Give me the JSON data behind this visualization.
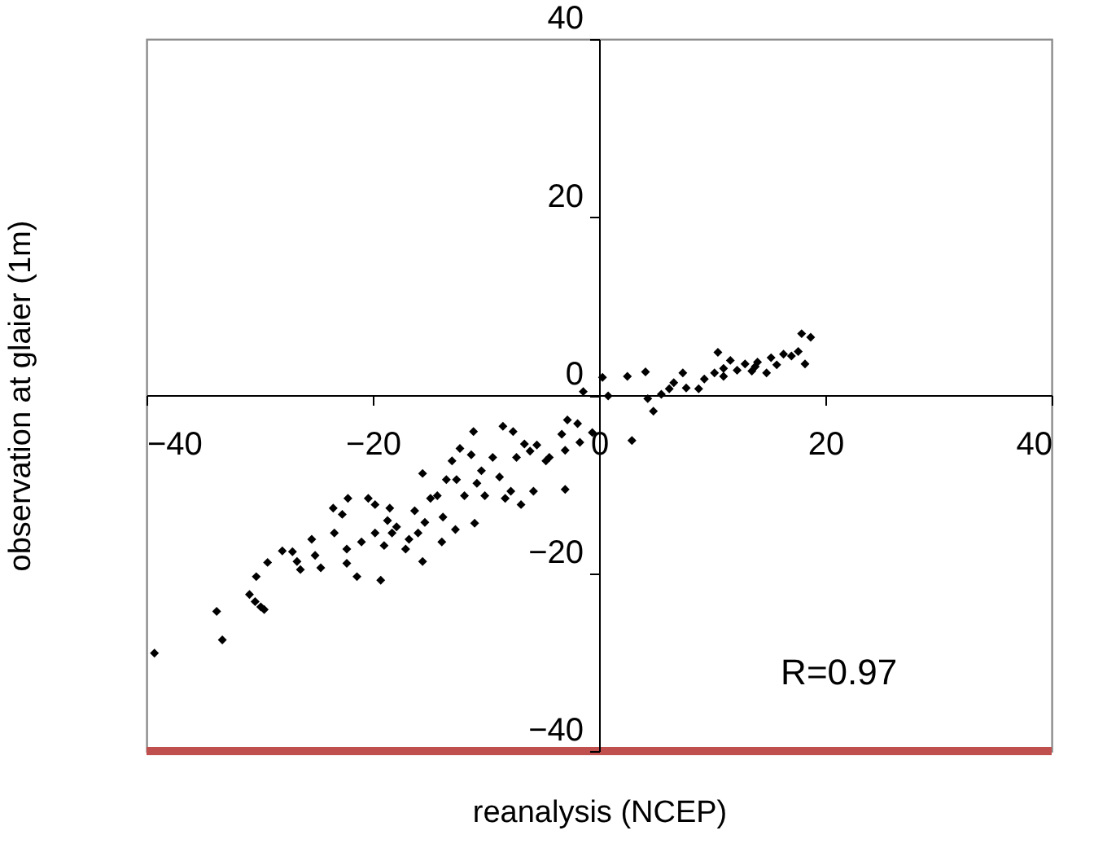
{
  "chart_data": {
    "type": "scatter",
    "xlabel": "reanalysis (NCEP)",
    "ylabel": "observation at glaier (1m)",
    "xlim": [
      -40,
      40
    ],
    "ylim": [
      -40,
      40
    ],
    "xticks": [
      -40,
      -20,
      0,
      20,
      40
    ],
    "yticks": [
      -40,
      -20,
      0,
      20,
      40
    ],
    "grid": false,
    "marker": "diamond",
    "legend": false,
    "annotations": [
      "R=0.97"
    ],
    "ref_lines": [
      {
        "axis": "y",
        "value": -40,
        "label": null,
        "color": "#c0504d"
      }
    ],
    "series": [
      {
        "color": "#000000",
        "x": [
          -39.3,
          -33.8,
          -33.3,
          -30.9,
          -30.4,
          -29.9,
          -29.6,
          -30.3,
          -29.3,
          -28.0,
          -27.1,
          -26.7,
          -26.4,
          -25.4,
          -25.1,
          -24.6,
          -23.5,
          -23.4,
          -22.7,
          -22.2,
          -22.3,
          -22.3,
          -21.4,
          -21.0,
          -20.4,
          -19.8,
          -19.8,
          -19.3,
          -19.0,
          -18.7,
          -18.5,
          -18.3,
          -17.9,
          -17.1,
          -16.8,
          -16.3,
          -16.0,
          -15.6,
          -15.6,
          -15.4,
          -14.9,
          -14.3,
          -13.9,
          -13.8,
          -13.5,
          -13.0,
          -12.7,
          -12.6,
          -12.3,
          -11.9,
          -11.3,
          -11.1,
          -11.0,
          -10.8,
          -10.4,
          -10.1,
          -9.4,
          -8.8,
          -8.5,
          -8.3,
          -7.8,
          -7.6,
          -7.3,
          -6.9,
          -6.6,
          -6.1,
          -5.8,
          -5.5,
          -4.7,
          -4.4,
          -3.3,
          -3.0,
          -3.0,
          -2.8,
          -1.9,
          -1.7,
          -1.4,
          -0.6,
          0.3,
          0.8,
          2.5,
          2.9,
          4.1,
          4.3,
          4.8,
          5.5,
          6.2,
          7.4,
          7.7,
          8.8,
          9.3,
          10.2,
          10.5,
          11.0,
          11.6,
          12.2,
          12.9,
          13.5,
          14.0,
          14.8,
          15.2,
          15.7,
          16.3,
          17.0,
          17.6,
          17.9,
          18.7,
          18.2,
          13.8,
          11.0,
          6.6
        ],
        "values": [
          -29.0,
          -24.3,
          -27.5,
          -22.4,
          -23.2,
          -23.8,
          -24.1,
          -20.4,
          -18.8,
          -17.5,
          -17.6,
          -18.7,
          -19.6,
          -16.2,
          -18.0,
          -19.4,
          -12.7,
          -15.5,
          -13.4,
          -11.6,
          -17.3,
          -18.9,
          -20.4,
          -16.5,
          -11.6,
          -12.3,
          -15.5,
          -20.8,
          -16.9,
          -14.1,
          -12.7,
          -15.5,
          -14.8,
          -17.3,
          -16.2,
          -13.0,
          -15.5,
          -8.8,
          -18.7,
          -14.3,
          -11.6,
          -11.3,
          -16.5,
          -13.7,
          -9.5,
          -7.4,
          -15.1,
          -9.5,
          -6.0,
          -11.3,
          -6.7,
          -4.1,
          -14.4,
          -9.9,
          -8.5,
          -11.3,
          -7.0,
          -9.2,
          -3.5,
          -11.6,
          -10.8,
          -4.1,
          -7.0,
          -12.3,
          -5.5,
          -6.3,
          -10.8,
          -5.6,
          -7.4,
          -7.0,
          -4.4,
          -10.6,
          -6.2,
          -2.8,
          -3.2,
          -5.3,
          0.4,
          -4.2,
          2.0,
          -0.1,
          2.1,
          -5.1,
          2.6,
          -0.4,
          -1.8,
          0.1,
          0.7,
          2.5,
          0.8,
          0.7,
          1.8,
          2.5,
          4.8,
          3.0,
          3.9,
          2.8,
          3.5,
          2.7,
          3.7,
          2.5,
          4.2,
          3.4,
          4.6,
          4.4,
          4.9,
          6.9,
          6.5,
          3.5,
          3.2,
          2.1,
          1.4
        ]
      }
    ]
  }
}
